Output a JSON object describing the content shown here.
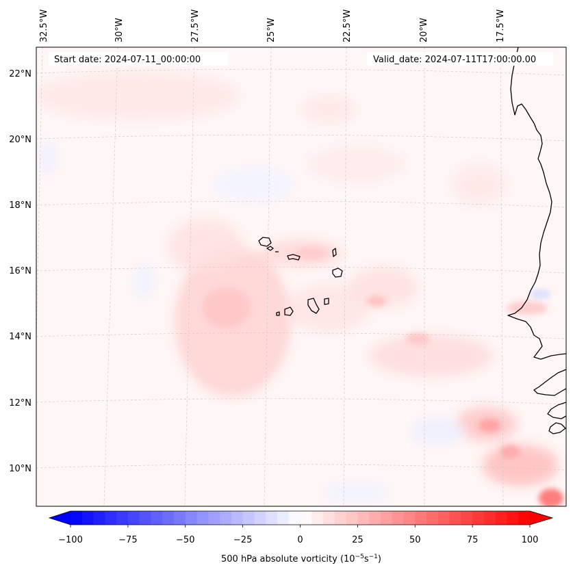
{
  "map": {
    "start_date": "Start date: 2024-07-11_00:00:00",
    "valid_date": "Valid_date: 2024-07-11T17:00:00.00",
    "background_color": "#fff5f5",
    "coastline_color": "#000000",
    "gridline_color": "#cccccc"
  },
  "longitude_labels": [
    "32.5°W",
    "30°W",
    "27.5°W",
    "25°W",
    "22.5°W",
    "20°W",
    "17.5°W"
  ],
  "latitude_labels": [
    "22°N",
    "20°N",
    "18°N",
    "16°N",
    "14°N",
    "12°N",
    "10°N"
  ],
  "colorbar": {
    "label": "500 hPa absolute vorticity (10",
    "label_exp1": "−5",
    "label_mid": "s",
    "label_exp2": "−1",
    "label_end": ")",
    "ticks": [
      "−100",
      "−75",
      "−50",
      "−25",
      "0",
      "25",
      "50",
      "75",
      "100"
    ],
    "min": -100,
    "max": 100,
    "step": 5,
    "negative_color": "#0000ff",
    "positive_color": "#ff0000",
    "neutral_color": "#ffffff"
  }
}
